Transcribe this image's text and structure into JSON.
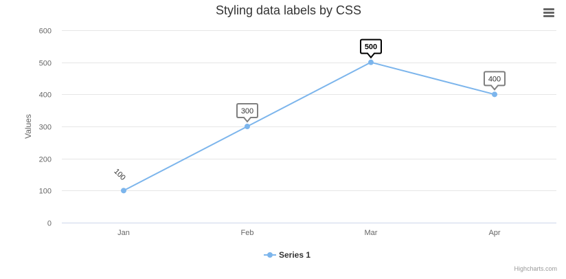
{
  "chart_data": {
    "type": "line",
    "title": "Styling data labels by CSS",
    "categories": [
      "Jan",
      "Feb",
      "Mar",
      "Apr"
    ],
    "series": [
      {
        "name": "Series 1",
        "values": [
          100,
          300,
          500,
          400
        ],
        "color": "#7cb5ec"
      }
    ],
    "ylabel": "Values",
    "xlabel": "",
    "ylim": [
      0,
      600
    ],
    "yticks": [
      0,
      100,
      200,
      300,
      400,
      500,
      600
    ],
    "grid": true,
    "legend_position": "bottom-center",
    "data_labels": [
      "100",
      "300",
      "500",
      "400"
    ],
    "data_label_styles": [
      "rotated-plain",
      "box-gray",
      "box-black-bold",
      "box-gray"
    ]
  },
  "credits": "Highcharts.com",
  "menu_icon": "hamburger-menu-icon",
  "colors": {
    "series": "#7cb5ec",
    "grid": "#e6e6e6",
    "axis_line": "#ccd6eb",
    "label_border_gray": "#7f7f7f",
    "label_border_black": "#000000"
  }
}
